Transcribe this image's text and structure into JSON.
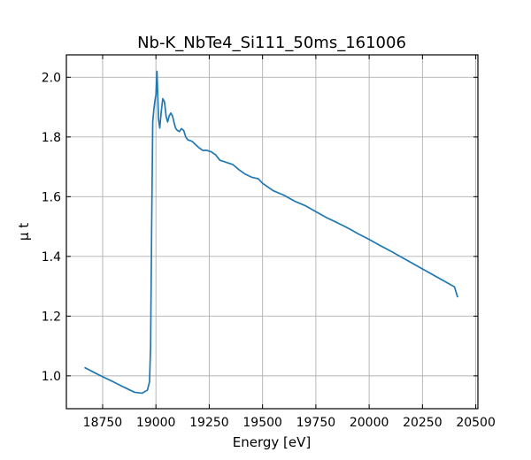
{
  "chart_data": {
    "type": "line",
    "title": "Nb-K_NbTe4_Si111_50ms_161006",
    "xlabel": "Energy [eV]",
    "ylabel": "μ t",
    "xlim": [
      18580,
      20510
    ],
    "ylim": [
      0.89,
      2.075
    ],
    "grid": true,
    "x_ticks": [
      18750,
      19000,
      19250,
      19500,
      19750,
      20000,
      20250,
      20500
    ],
    "y_ticks": [
      1.0,
      1.2,
      1.4,
      1.6,
      1.8,
      2.0
    ],
    "x_tick_labels": [
      "18750",
      "19000",
      "19250",
      "19500",
      "19750",
      "20000",
      "20250",
      "20500"
    ],
    "y_tick_labels": [
      "1.0",
      "1.2",
      "1.4",
      "1.6",
      "1.8",
      "2.0"
    ],
    "series": [
      {
        "color": "#1f77b4",
        "x": [
          18665,
          18700,
          18750,
          18800,
          18850,
          18900,
          18935,
          18960,
          18970,
          18975,
          18980,
          18985,
          18990,
          18995,
          19000,
          19005,
          19008,
          19012,
          19018,
          19025,
          19032,
          19040,
          19048,
          19055,
          19062,
          19070,
          19078,
          19085,
          19092,
          19100,
          19110,
          19120,
          19130,
          19140,
          19150,
          19160,
          19170,
          19185,
          19200,
          19220,
          19240,
          19260,
          19280,
          19300,
          19330,
          19360,
          19390,
          19420,
          19450,
          19480,
          19500,
          19550,
          19600,
          19650,
          19700,
          19750,
          19800,
          19850,
          19900,
          19950,
          20000,
          20050,
          20100,
          20150,
          20200,
          20250,
          20300,
          20350,
          20400,
          20415
        ],
        "y": [
          1.028,
          1.015,
          0.997,
          0.98,
          0.962,
          0.945,
          0.942,
          0.952,
          0.98,
          1.1,
          1.5,
          1.85,
          1.89,
          1.92,
          1.94,
          2.02,
          1.95,
          1.86,
          1.83,
          1.885,
          1.928,
          1.918,
          1.868,
          1.85,
          1.87,
          1.88,
          1.87,
          1.848,
          1.83,
          1.822,
          1.818,
          1.828,
          1.822,
          1.8,
          1.79,
          1.788,
          1.785,
          1.775,
          1.765,
          1.755,
          1.755,
          1.75,
          1.74,
          1.722,
          1.715,
          1.708,
          1.69,
          1.675,
          1.665,
          1.66,
          1.645,
          1.62,
          1.605,
          1.585,
          1.57,
          1.55,
          1.53,
          1.513,
          1.495,
          1.475,
          1.457,
          1.437,
          1.418,
          1.398,
          1.378,
          1.358,
          1.338,
          1.318,
          1.298,
          1.263
        ]
      }
    ]
  }
}
